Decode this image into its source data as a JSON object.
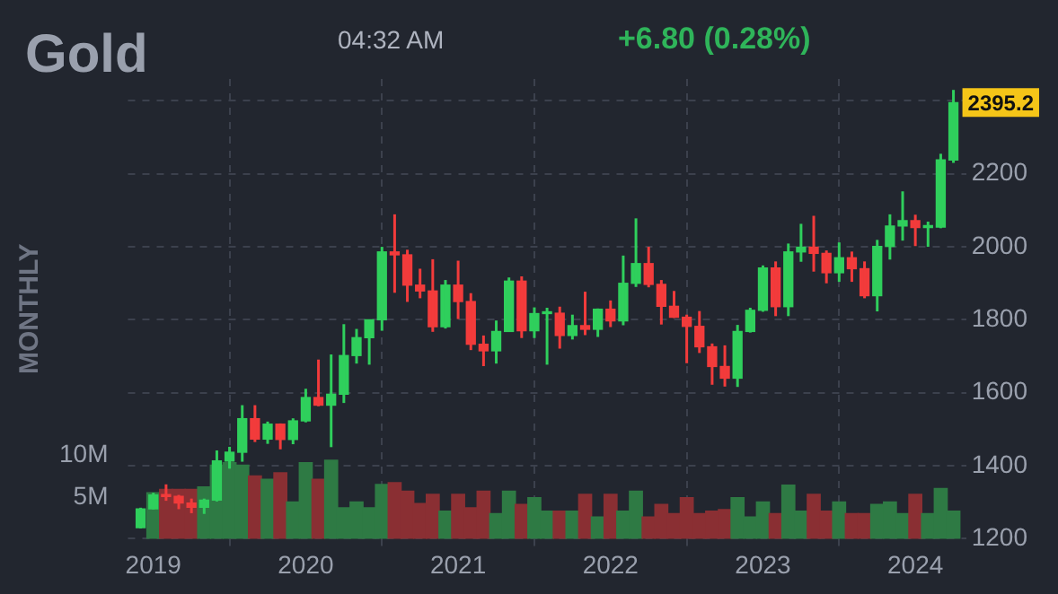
{
  "chart_data": {
    "type": "candlestick",
    "title": "Gold",
    "subtitle": "04:32 AM",
    "y2label": "MONTHLY",
    "x": [
      "2018-12",
      "2019-01",
      "2019-02",
      "2019-03",
      "2019-04",
      "2019-05",
      "2019-06",
      "2019-07",
      "2019-08",
      "2019-09",
      "2019-10",
      "2019-11",
      "2019-12",
      "2020-01",
      "2020-02",
      "2020-03",
      "2020-04",
      "2020-05",
      "2020-06",
      "2020-07",
      "2020-08",
      "2020-09",
      "2020-10",
      "2020-11",
      "2020-12",
      "2021-01",
      "2021-02",
      "2021-03",
      "2021-04",
      "2021-05",
      "2021-06",
      "2021-07",
      "2021-08",
      "2021-09",
      "2021-10",
      "2021-11",
      "2021-12",
      "2022-01",
      "2022-02",
      "2022-03",
      "2022-04",
      "2022-05",
      "2022-06",
      "2022-07",
      "2022-08",
      "2022-09",
      "2022-10",
      "2022-11",
      "2022-12",
      "2023-01",
      "2023-02",
      "2023-03",
      "2023-04",
      "2023-05",
      "2023-06",
      "2023-07",
      "2023-08",
      "2023-09",
      "2023-10",
      "2023-11",
      "2023-12",
      "2024-01",
      "2024-02",
      "2024-03",
      "2024-04"
    ],
    "series": [
      {
        "ohlc": [
          [
            1230,
            1285,
            1228,
            1282
          ],
          [
            1282,
            1326,
            1280,
            1320
          ],
          [
            1320,
            1349,
            1304,
            1316
          ],
          [
            1316,
            1320,
            1281,
            1298
          ],
          [
            1298,
            1310,
            1270,
            1286
          ],
          [
            1286,
            1310,
            1268,
            1306
          ],
          [
            1306,
            1442,
            1302,
            1413
          ],
          [
            1413,
            1452,
            1392,
            1437
          ],
          [
            1437,
            1566,
            1411,
            1529
          ],
          [
            1529,
            1566,
            1465,
            1473
          ],
          [
            1473,
            1521,
            1460,
            1514
          ],
          [
            1514,
            1516,
            1445,
            1472
          ],
          [
            1472,
            1530,
            1459,
            1523
          ],
          [
            1523,
            1611,
            1519,
            1587
          ],
          [
            1587,
            1691,
            1563,
            1566
          ],
          [
            1566,
            1705,
            1451,
            1596
          ],
          [
            1596,
            1788,
            1572,
            1702
          ],
          [
            1702,
            1775,
            1680,
            1751
          ],
          [
            1751,
            1800,
            1677,
            1800
          ],
          [
            1800,
            2000,
            1770,
            1986
          ],
          [
            1986,
            2089,
            1874,
            1978
          ],
          [
            1978,
            1992,
            1849,
            1895
          ],
          [
            1895,
            1940,
            1859,
            1879
          ],
          [
            1879,
            1966,
            1767,
            1781
          ],
          [
            1781,
            1909,
            1776,
            1895
          ],
          [
            1895,
            1962,
            1802,
            1850
          ],
          [
            1850,
            1873,
            1717,
            1733
          ],
          [
            1733,
            1757,
            1673,
            1715
          ],
          [
            1715,
            1798,
            1680,
            1768
          ],
          [
            1768,
            1916,
            1767,
            1906
          ],
          [
            1906,
            1919,
            1750,
            1770
          ],
          [
            1770,
            1834,
            1750,
            1817
          ],
          [
            1817,
            1833,
            1677,
            1818
          ],
          [
            1818,
            1836,
            1721,
            1757
          ],
          [
            1757,
            1814,
            1746,
            1784
          ],
          [
            1784,
            1877,
            1758,
            1774
          ],
          [
            1774,
            1831,
            1753,
            1829
          ],
          [
            1829,
            1853,
            1780,
            1797
          ],
          [
            1797,
            1976,
            1785,
            1900
          ],
          [
            1900,
            2078,
            1890,
            1954
          ],
          [
            1954,
            2000,
            1889,
            1897
          ],
          [
            1897,
            1909,
            1787,
            1837
          ],
          [
            1837,
            1879,
            1805,
            1807
          ],
          [
            1807,
            1814,
            1681,
            1782
          ],
          [
            1782,
            1824,
            1709,
            1726
          ],
          [
            1726,
            1735,
            1622,
            1672
          ],
          [
            1672,
            1730,
            1617,
            1640
          ],
          [
            1640,
            1786,
            1616,
            1768
          ],
          [
            1768,
            1833,
            1765,
            1826
          ],
          [
            1826,
            1949,
            1822,
            1942
          ],
          [
            1942,
            1960,
            1810,
            1836
          ],
          [
            1836,
            2009,
            1810,
            1986
          ],
          [
            1986,
            2063,
            1959,
            1999
          ],
          [
            1999,
            2085,
            1932,
            1982
          ],
          [
            1982,
            1990,
            1900,
            1929
          ],
          [
            1929,
            2012,
            1904,
            1970
          ],
          [
            1970,
            1987,
            1904,
            1940
          ],
          [
            1940,
            1960,
            1859,
            1866
          ],
          [
            1866,
            2019,
            1823,
            2001
          ],
          [
            2001,
            2089,
            1965,
            2057
          ],
          [
            2057,
            2152,
            2017,
            2072
          ],
          [
            2072,
            2088,
            2002,
            2053
          ],
          [
            2053,
            2069,
            2000,
            2054
          ],
          [
            2054,
            2255,
            2051,
            2238
          ],
          [
            2238,
            2430,
            2230,
            2395.2
          ]
        ],
        "colors": [
          "#2fcf5c",
          "#2fcf5c",
          "#f23b3b",
          "#f23b3b",
          "#f23b3b",
          "#2fcf5c",
          "#2fcf5c",
          "#2fcf5c",
          "#2fcf5c",
          "#f23b3b",
          "#2fcf5c",
          "#f23b3b",
          "#2fcf5c",
          "#2fcf5c",
          "#f23b3b",
          "#2fcf5c",
          "#2fcf5c",
          "#2fcf5c",
          "#2fcf5c",
          "#2fcf5c",
          "#f23b3b",
          "#f23b3b",
          "#f23b3b",
          "#f23b3b",
          "#2fcf5c",
          "#f23b3b",
          "#f23b3b",
          "#f23b3b",
          "#2fcf5c",
          "#2fcf5c",
          "#f23b3b",
          "#2fcf5c",
          "#2fcf5c",
          "#f23b3b",
          "#2fcf5c",
          "#f23b3b",
          "#2fcf5c",
          "#f23b3b",
          "#2fcf5c",
          "#2fcf5c",
          "#f23b3b",
          "#f23b3b",
          "#f23b3b",
          "#f23b3b",
          "#f23b3b",
          "#f23b3b",
          "#f23b3b",
          "#2fcf5c",
          "#2fcf5c",
          "#2fcf5c",
          "#f23b3b",
          "#2fcf5c",
          "#2fcf5c",
          "#f23b3b",
          "#f23b3b",
          "#2fcf5c",
          "#f23b3b",
          "#f23b3b",
          "#2fcf5c",
          "#2fcf5c",
          "#2fcf5c",
          "#f23b3b",
          "#2fcf5c",
          "#2fcf5c",
          "#2fcf5c"
        ]
      },
      {
        "type": "bar",
        "axis": "y2",
        "values": [
          null,
          5.5,
          5.9,
          5.9,
          5.9,
          6.2,
          8.8,
          9.1,
          8.8,
          7.5,
          7.1,
          7.9,
          4.4,
          9.1,
          7.1,
          9.4,
          3.7,
          4.4,
          3.7,
          6.5,
          6.7,
          5.7,
          4.2,
          5.3,
          3.3,
          5.3,
          3.7,
          5.7,
          3.0,
          5.7,
          4.1,
          4.9,
          3.3,
          3.3,
          3.3,
          5.3,
          2.6,
          5.3,
          3.3,
          5.7,
          2.6,
          4.1,
          3.0,
          4.9,
          3.0,
          3.3,
          3.5,
          4.9,
          2.6,
          4.4,
          3.0,
          6.4,
          3.3,
          5.3,
          3.3,
          4.4,
          3.0,
          3.0,
          4.1,
          4.4,
          3.0,
          5.3,
          3.0,
          6.0,
          3.3
        ],
        "colors": [
          "#2e7a44",
          "#2e7a44",
          "#8a2f33",
          "#8a2f33",
          "#8a2f33",
          "#2e7a44",
          "#2e7a44",
          "#2e7a44",
          "#2e7a44",
          "#8a2f33",
          "#2e7a44",
          "#8a2f33",
          "#2e7a44",
          "#2e7a44",
          "#8a2f33",
          "#2e7a44",
          "#2e7a44",
          "#2e7a44",
          "#2e7a44",
          "#2e7a44",
          "#8a2f33",
          "#8a2f33",
          "#8a2f33",
          "#8a2f33",
          "#2e7a44",
          "#8a2f33",
          "#8a2f33",
          "#8a2f33",
          "#2e7a44",
          "#2e7a44",
          "#8a2f33",
          "#2e7a44",
          "#2e7a44",
          "#8a2f33",
          "#2e7a44",
          "#8a2f33",
          "#2e7a44",
          "#8a2f33",
          "#2e7a44",
          "#2e7a44",
          "#8a2f33",
          "#8a2f33",
          "#8a2f33",
          "#8a2f33",
          "#8a2f33",
          "#8a2f33",
          "#8a2f33",
          "#2e7a44",
          "#2e7a44",
          "#2e7a44",
          "#8a2f33",
          "#2e7a44",
          "#2e7a44",
          "#8a2f33",
          "#8a2f33",
          "#2e7a44",
          "#8a2f33",
          "#8a2f33",
          "#2e7a44",
          "#2e7a44",
          "#2e7a44",
          "#8a2f33",
          "#2e7a44",
          "#2e7a44",
          "#2e7a44"
        ]
      }
    ],
    "xlim": [
      "2018-11",
      "2024-05"
    ],
    "xticks": [
      {
        "value": "2019-01",
        "label": "2019"
      },
      {
        "value": "2020-01",
        "label": "2020"
      },
      {
        "value": "2021-01",
        "label": "2021"
      },
      {
        "value": "2022-01",
        "label": "2022"
      },
      {
        "value": "2023-01",
        "label": "2023"
      },
      {
        "value": "2024-01",
        "label": "2024"
      }
    ],
    "ylim": [
      1200,
      2460
    ],
    "yticks": [
      1200,
      1400,
      1600,
      1800,
      2000,
      2200,
      {
        "value": 2400,
        "label": null
      }
    ],
    "y2lim": [
      0,
      55
    ],
    "y2ticks": [
      {
        "value": 5,
        "label": "5M"
      },
      {
        "value": 10,
        "label": "10M"
      }
    ],
    "grid": true,
    "annotations": [
      "+6.80 (0.28%)",
      {
        "text": "2395.2",
        "x": "2024-04",
        "y": 2395.2
      }
    ]
  }
}
